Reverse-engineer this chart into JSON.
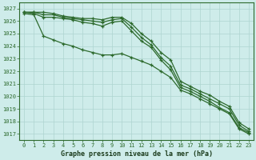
{
  "hours": [
    0,
    1,
    2,
    3,
    4,
    5,
    6,
    7,
    8,
    9,
    10,
    11,
    12,
    13,
    14,
    15,
    16,
    17,
    18,
    19,
    20,
    21,
    22,
    23
  ],
  "lines": [
    [
      1026.7,
      1026.7,
      1026.7,
      1026.6,
      1026.4,
      1026.3,
      1026.2,
      1026.2,
      1026.1,
      1026.3,
      1026.3,
      1025.8,
      1025.0,
      1024.4,
      1023.5,
      1022.9,
      1021.2,
      1020.8,
      1020.4,
      1020.1,
      1019.6,
      1019.2,
      1017.9,
      1017.4
    ],
    [
      1026.7,
      1026.7,
      1026.5,
      1026.5,
      1026.3,
      1026.2,
      1026.1,
      1026.0,
      1025.9,
      1026.1,
      1026.2,
      1025.5,
      1024.7,
      1024.1,
      1023.1,
      1022.4,
      1020.9,
      1020.6,
      1020.2,
      1019.8,
      1019.4,
      1019.0,
      1017.7,
      1017.2
    ],
    [
      1026.7,
      1026.6,
      1026.3,
      1026.3,
      1026.2,
      1026.1,
      1025.9,
      1025.8,
      1025.6,
      1025.9,
      1026.0,
      1025.2,
      1024.4,
      1023.9,
      1022.9,
      1022.1,
      1020.7,
      1020.4,
      1020.0,
      1019.6,
      1019.1,
      1018.7,
      1017.5,
      1017.1
    ],
    [
      1026.6,
      1026.5,
      1024.8,
      1024.5,
      1024.2,
      1024.0,
      1023.7,
      1023.5,
      1023.3,
      1023.3,
      1023.4,
      1023.1,
      1022.8,
      1022.5,
      1022.0,
      1021.5,
      1020.5,
      1020.2,
      1019.8,
      1019.4,
      1019.0,
      1018.6,
      1017.4,
      1017.0
    ]
  ],
  "line_colors": [
    "#2d6a2d",
    "#2d6a2d",
    "#2d6a2d",
    "#2d6a2d"
  ],
  "bg_color": "#ceecea",
  "grid_color": "#aed5d0",
  "axis_label_color": "#1a3a1a",
  "tick_color": "#2d6a2d",
  "ylabel_ticks": [
    1017,
    1018,
    1019,
    1020,
    1021,
    1022,
    1023,
    1024,
    1025,
    1026,
    1027
  ],
  "ylim": [
    1016.5,
    1027.5
  ],
  "xlim": [
    -0.5,
    23.5
  ],
  "xlabel": "Graphe pression niveau de la mer (hPa)"
}
